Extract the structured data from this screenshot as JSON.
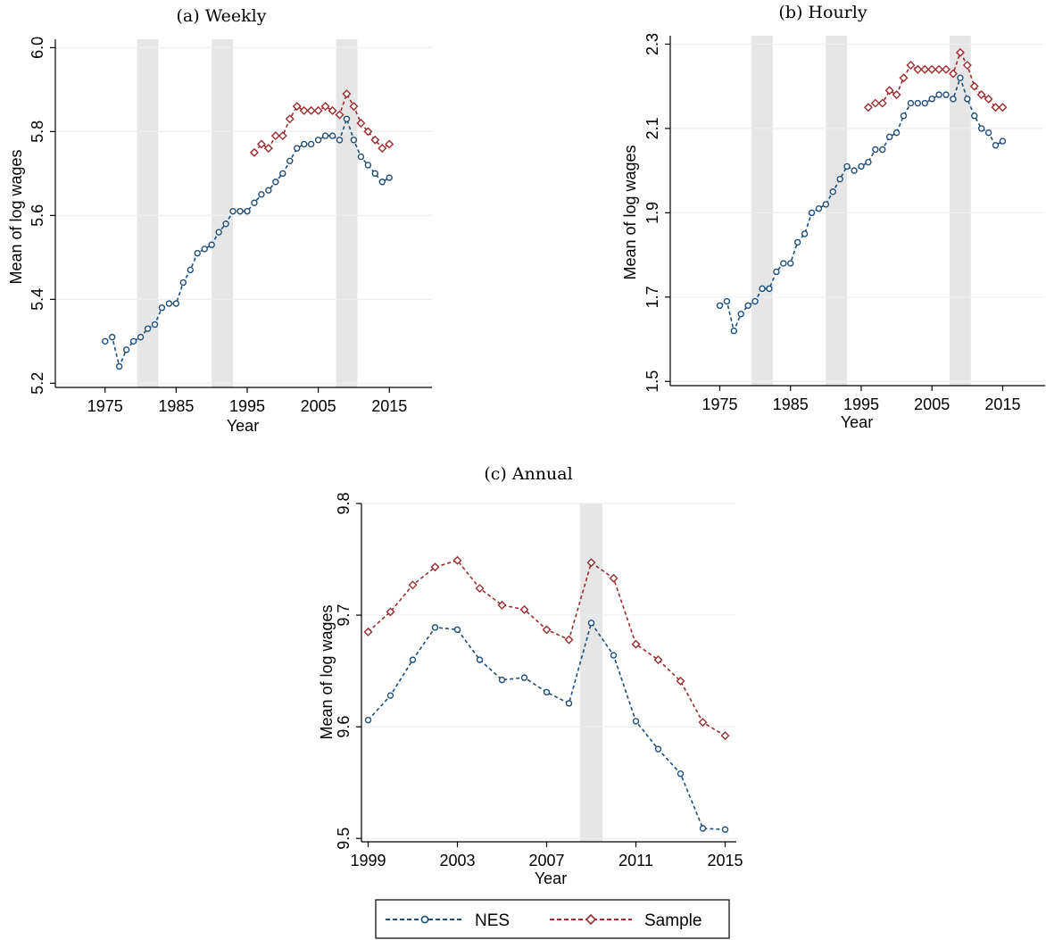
{
  "colors": {
    "nes": "#1e4e79",
    "sample": "#9b2d30",
    "recession": "#e6e6e6",
    "grid": "#eaf0f3",
    "axis": "#000000"
  },
  "legend": {
    "items": [
      {
        "label": "NES",
        "series": "nes",
        "marker": "circle"
      },
      {
        "label": "Sample",
        "series": "sample",
        "marker": "diamond"
      }
    ]
  },
  "chart_data": [
    {
      "id": "weekly",
      "type": "line",
      "title": "(a) Weekly",
      "xlabel": "Year",
      "ylabel": "Mean of log wages",
      "xlim": [
        1968,
        2021
      ],
      "ylim": [
        5.19,
        6.02
      ],
      "xticks": [
        1975,
        1985,
        1995,
        2005,
        2015
      ],
      "yticks": [
        5.2,
        5.4,
        5.6,
        5.8,
        6.0
      ],
      "ytick_labels": [
        "5.2",
        "5.4",
        "5.6",
        "5.8",
        "6.0"
      ],
      "grid": "horizontal",
      "recessions": [
        [
          1979.5,
          1982.5
        ],
        [
          1990,
          1993
        ],
        [
          2007.5,
          2010.5
        ]
      ],
      "series": [
        {
          "key": "nes",
          "marker": "circle",
          "x": [
            1975,
            1976,
            1977,
            1978,
            1979,
            1980,
            1981,
            1982,
            1983,
            1984,
            1985,
            1986,
            1987,
            1988,
            1989,
            1990,
            1991,
            1992,
            1993,
            1994,
            1995,
            1996,
            1997,
            1998,
            1999,
            2000,
            2001,
            2002,
            2003,
            2004,
            2005,
            2006,
            2007,
            2008,
            2009,
            2010,
            2011,
            2012,
            2013,
            2014,
            2015
          ],
          "y": [
            5.3,
            5.31,
            5.24,
            5.28,
            5.3,
            5.31,
            5.33,
            5.34,
            5.38,
            5.39,
            5.39,
            5.44,
            5.47,
            5.51,
            5.52,
            5.53,
            5.56,
            5.58,
            5.61,
            5.61,
            5.61,
            5.63,
            5.65,
            5.66,
            5.68,
            5.7,
            5.73,
            5.76,
            5.77,
            5.77,
            5.78,
            5.79,
            5.79,
            5.78,
            5.83,
            5.78,
            5.74,
            5.72,
            5.7,
            5.68,
            5.69
          ]
        },
        {
          "key": "sample",
          "marker": "diamond",
          "x": [
            1996,
            1997,
            1998,
            1999,
            2000,
            2001,
            2002,
            2003,
            2004,
            2005,
            2006,
            2007,
            2008,
            2009,
            2010,
            2011,
            2012,
            2013,
            2014,
            2015
          ],
          "y": [
            5.75,
            5.77,
            5.76,
            5.79,
            5.79,
            5.83,
            5.86,
            5.85,
            5.85,
            5.85,
            5.86,
            5.85,
            5.84,
            5.89,
            5.86,
            5.82,
            5.8,
            5.78,
            5.76,
            5.77
          ]
        }
      ]
    },
    {
      "id": "hourly",
      "type": "line",
      "title": "(b) Hourly",
      "xlabel": "Year",
      "ylabel": "Mean of log wages",
      "xlim": [
        1968,
        2021
      ],
      "ylim": [
        1.49,
        2.32
      ],
      "xticks": [
        1975,
        1985,
        1995,
        2005,
        2015
      ],
      "yticks": [
        1.5,
        1.7,
        1.9,
        2.1,
        2.3
      ],
      "ytick_labels": [
        "1.5",
        "1.7",
        "1.9",
        "2.1",
        "2.3"
      ],
      "grid": "horizontal",
      "recessions": [
        [
          1979.5,
          1982.5
        ],
        [
          1990,
          1993
        ],
        [
          2007.5,
          2010.5
        ]
      ],
      "series": [
        {
          "key": "nes",
          "marker": "circle",
          "x": [
            1975,
            1976,
            1977,
            1978,
            1979,
            1980,
            1981,
            1982,
            1983,
            1984,
            1985,
            1986,
            1987,
            1988,
            1989,
            1990,
            1991,
            1992,
            1993,
            1994,
            1995,
            1996,
            1997,
            1998,
            1999,
            2000,
            2001,
            2002,
            2003,
            2004,
            2005,
            2006,
            2007,
            2008,
            2009,
            2010,
            2011,
            2012,
            2013,
            2014,
            2015
          ],
          "y": [
            1.68,
            1.69,
            1.62,
            1.66,
            1.68,
            1.69,
            1.72,
            1.72,
            1.76,
            1.78,
            1.78,
            1.83,
            1.85,
            1.9,
            1.91,
            1.92,
            1.95,
            1.98,
            2.01,
            2.0,
            2.01,
            2.02,
            2.05,
            2.05,
            2.08,
            2.09,
            2.13,
            2.16,
            2.16,
            2.16,
            2.17,
            2.18,
            2.18,
            2.17,
            2.22,
            2.17,
            2.13,
            2.1,
            2.09,
            2.06,
            2.07
          ]
        },
        {
          "key": "sample",
          "marker": "diamond",
          "x": [
            1996,
            1997,
            1998,
            1999,
            2000,
            2001,
            2002,
            2003,
            2004,
            2005,
            2006,
            2007,
            2008,
            2009,
            2010,
            2011,
            2012,
            2013,
            2014,
            2015
          ],
          "y": [
            2.15,
            2.16,
            2.16,
            2.19,
            2.18,
            2.22,
            2.25,
            2.24,
            2.24,
            2.24,
            2.24,
            2.24,
            2.23,
            2.28,
            2.25,
            2.2,
            2.18,
            2.17,
            2.15,
            2.15
          ]
        }
      ]
    },
    {
      "id": "annual",
      "type": "line",
      "title": "(c) Annual",
      "xlabel": "Year",
      "ylabel": "Mean of log wages",
      "xlim": [
        1998.7,
        2015.5
      ],
      "ylim": [
        9.497,
        9.8
      ],
      "xticks": [
        1999,
        2003,
        2007,
        2011,
        2015
      ],
      "yticks": [
        9.5,
        9.6,
        9.7,
        9.8
      ],
      "ytick_labels": [
        "9.5",
        "9.6",
        "9.7",
        "9.8"
      ],
      "grid": "horizontal",
      "recessions": [
        [
          2008.5,
          2009.5
        ]
      ],
      "series": [
        {
          "key": "nes",
          "marker": "circle",
          "x": [
            1999,
            2000,
            2001,
            2002,
            2003,
            2004,
            2005,
            2006,
            2007,
            2008,
            2009,
            2010,
            2011,
            2012,
            2013,
            2014,
            2015
          ],
          "y": [
            9.606,
            9.628,
            9.66,
            9.689,
            9.687,
            9.66,
            9.642,
            9.644,
            9.631,
            9.621,
            9.693,
            9.664,
            9.605,
            9.58,
            9.558,
            9.509,
            9.508
          ]
        },
        {
          "key": "sample",
          "marker": "diamond",
          "x": [
            1999,
            2000,
            2001,
            2002,
            2003,
            2004,
            2005,
            2006,
            2007,
            2008,
            2009,
            2010,
            2011,
            2012,
            2013,
            2014,
            2015
          ],
          "y": [
            9.685,
            9.703,
            9.727,
            9.743,
            9.749,
            9.724,
            9.709,
            9.705,
            9.687,
            9.678,
            9.747,
            9.733,
            9.674,
            9.66,
            9.641,
            9.604,
            9.592
          ]
        }
      ]
    }
  ]
}
